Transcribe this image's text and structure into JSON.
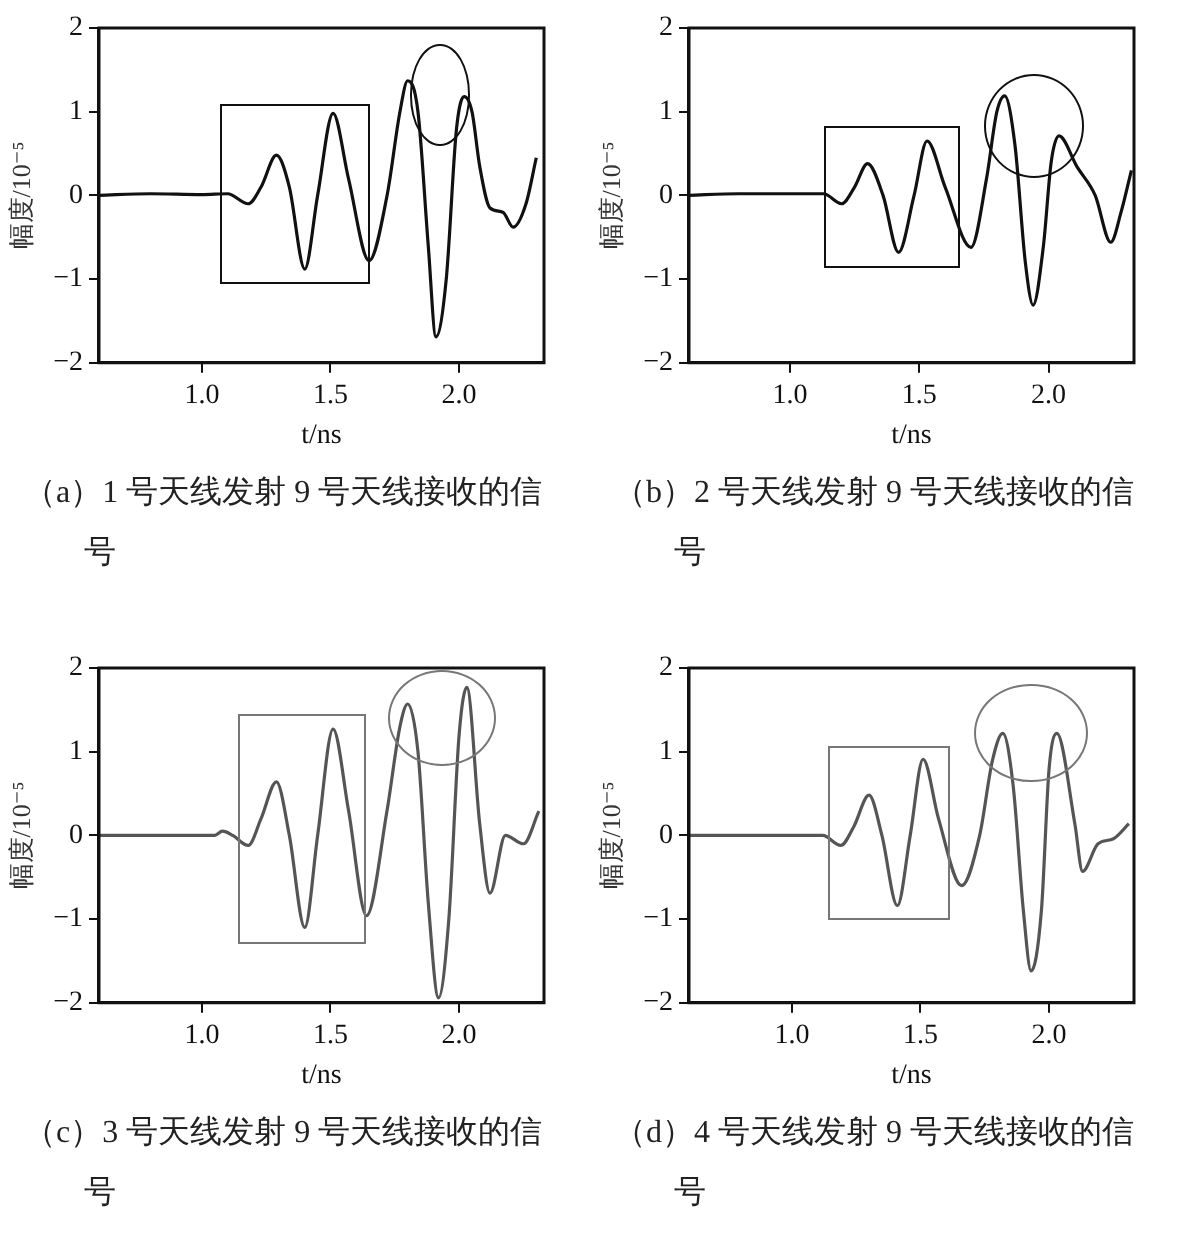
{
  "chart_data": [
    {
      "type": "line",
      "title": "（a）1 号天线发射 9 号天线接收的信号",
      "xlabel": "t/ns",
      "ylabel": "幅度/10⁻⁵",
      "xlim": [
        0.6,
        2.33
      ],
      "ylim": [
        -2,
        2
      ],
      "xticks": [
        {
          "value": 1,
          "label": "1.0"
        },
        {
          "value": 1.5,
          "label": "1.5"
        },
        {
          "value": 2,
          "label": "2.0"
        }
      ],
      "yticks": [
        -2,
        -1,
        0,
        1,
        2
      ],
      "series": [
        {
          "color": "#111111",
          "x": [
            0.6,
            0.8,
            1.0,
            1.1,
            1.18,
            1.23,
            1.29,
            1.34,
            1.4,
            1.45,
            1.51,
            1.57,
            1.65,
            1.72,
            1.77,
            1.8,
            1.84,
            1.88,
            1.91,
            1.95,
            1.99,
            2.02,
            2.05,
            2.08,
            2.12,
            2.17,
            2.21,
            2.26,
            2.3
          ],
          "values": [
            0,
            0.02,
            0.01,
            0.02,
            -0.1,
            0.1,
            0.48,
            0.1,
            -0.88,
            0,
            0.98,
            0.2,
            -0.78,
            0,
            1.0,
            1.37,
            1.0,
            -0.6,
            -1.69,
            -1.0,
            0.8,
            1.18,
            1.0,
            0.35,
            -0.15,
            -0.2,
            -0.38,
            -0.1,
            0.45
          ]
        }
      ]
    },
    {
      "type": "line",
      "title": "（b）2 号天线发射 9 号天线接收的信号",
      "xlabel": "t/ns",
      "ylabel": "幅度/10⁻⁵",
      "xlim": [
        0.61,
        2.33
      ],
      "ylim": [
        -2,
        2
      ],
      "xticks": [
        {
          "value": 1,
          "label": "1.0"
        },
        {
          "value": 1.5,
          "label": "1.5"
        },
        {
          "value": 2,
          "label": "2.0"
        }
      ],
      "yticks": [
        -2,
        -1,
        0,
        1,
        2
      ],
      "series": [
        {
          "color": "#111111",
          "x": [
            0.61,
            0.8,
            1.0,
            1.13,
            1.2,
            1.25,
            1.3,
            1.36,
            1.42,
            1.48,
            1.53,
            1.6,
            1.7,
            1.76,
            1.8,
            1.83,
            1.87,
            1.91,
            1.94,
            1.98,
            2.01,
            2.04,
            2.11,
            2.18,
            2.24,
            2.28,
            2.32
          ],
          "values": [
            0,
            0.02,
            0.02,
            0.02,
            -0.1,
            0.1,
            0.38,
            0,
            -0.68,
            0,
            0.65,
            0.1,
            -0.62,
            0.2,
            1.0,
            1.19,
            0.6,
            -0.8,
            -1.31,
            -0.6,
            0.4,
            0.71,
            0.34,
            0,
            -0.56,
            -0.2,
            0.3
          ]
        }
      ]
    },
    {
      "type": "line",
      "title": "（c）3 号天线发射 9 号天线接收的信号",
      "xlabel": "t/ns",
      "ylabel": "幅度/10⁻⁵",
      "xlim": [
        0.6,
        2.33
      ],
      "ylim": [
        -2,
        2
      ],
      "xticks": [
        {
          "value": 1,
          "label": "1.0"
        },
        {
          "value": 1.5,
          "label": "1.5"
        },
        {
          "value": 2,
          "label": "2.0"
        }
      ],
      "yticks": [
        -2,
        -1,
        0,
        1,
        2
      ],
      "series": [
        {
          "color": "#555555",
          "x": [
            0.6,
            0.8,
            1.0,
            1.05,
            1.08,
            1.12,
            1.18,
            1.23,
            1.29,
            1.34,
            1.4,
            1.45,
            1.51,
            1.57,
            1.64,
            1.72,
            1.77,
            1.8,
            1.84,
            1.88,
            1.92,
            1.96,
            2.0,
            2.03,
            2.08,
            2.12,
            2.18,
            2.25,
            2.31
          ],
          "values": [
            0,
            0,
            0,
            0,
            0.05,
            0,
            -0.12,
            0.2,
            0.64,
            0,
            -1.1,
            0,
            1.27,
            0.3,
            -0.96,
            0.3,
            1.3,
            1.57,
            1.0,
            -0.8,
            -1.94,
            -1.0,
            1.2,
            1.77,
            0.14,
            -0.69,
            0,
            -0.1,
            0.29
          ]
        }
      ]
    },
    {
      "type": "line",
      "title": "（d）4 号天线发射 9 号天线接收的信号",
      "xlabel": "t/ns",
      "ylabel": "幅度/10⁻⁵",
      "xlim": [
        0.6,
        2.33
      ],
      "ylim": [
        -2,
        2
      ],
      "xticks": [
        {
          "value": 1,
          "label": "1.0"
        },
        {
          "value": 1.5,
          "label": "1.5"
        },
        {
          "value": 2,
          "label": "2.0"
        }
      ],
      "yticks": [
        -2,
        -1,
        0,
        1,
        2
      ],
      "series": [
        {
          "color": "#555555",
          "x": [
            0.6,
            0.8,
            1.0,
            1.12,
            1.19,
            1.24,
            1.3,
            1.35,
            1.41,
            1.46,
            1.51,
            1.57,
            1.66,
            1.73,
            1.78,
            1.82,
            1.86,
            1.9,
            1.93,
            1.97,
            2.0,
            2.03,
            2.1,
            2.13,
            2.19,
            2.25,
            2.31
          ],
          "values": [
            0,
            0,
            0,
            0,
            -0.12,
            0.1,
            0.48,
            0,
            -0.84,
            0,
            0.91,
            0.2,
            -0.6,
            0,
            0.9,
            1.22,
            0.6,
            -0.9,
            -1.62,
            -0.9,
            0.8,
            1.22,
            0.14,
            -0.43,
            -0.1,
            -0.04,
            0.14
          ]
        }
      ]
    }
  ]
}
